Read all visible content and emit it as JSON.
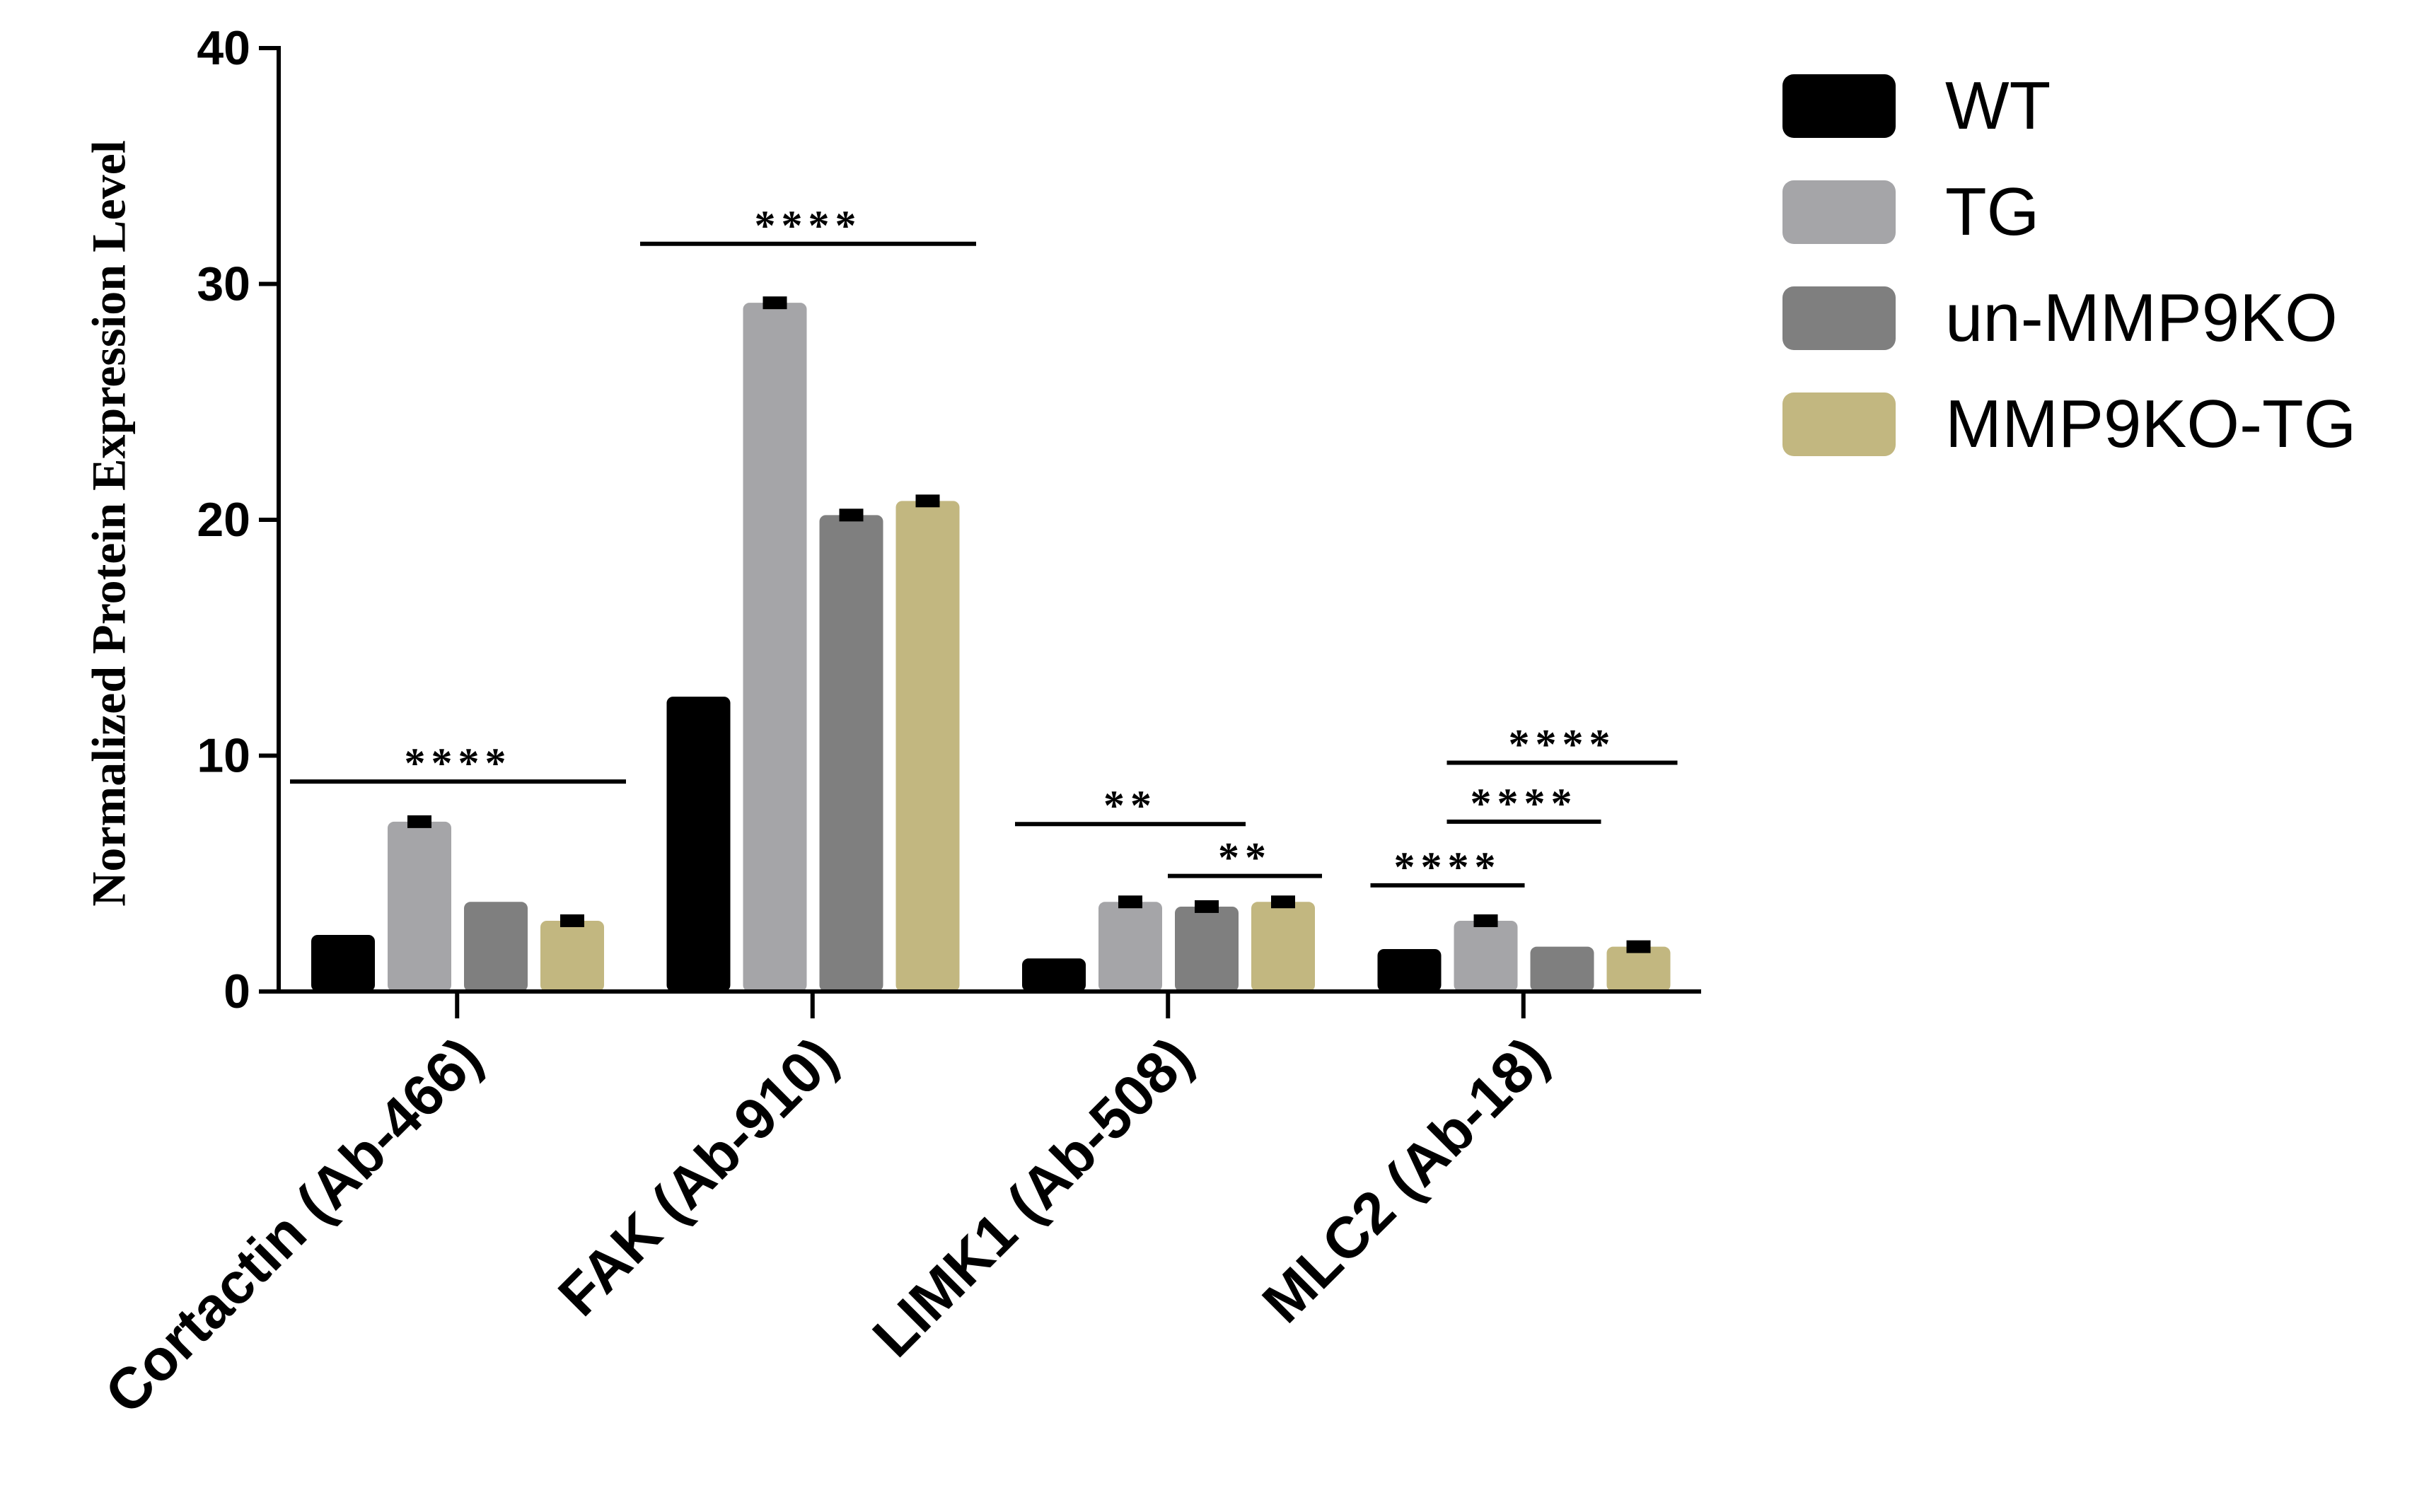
{
  "chart_data": {
    "type": "bar",
    "title": "",
    "xlabel": "",
    "ylabel": "Normalized Protein Expression Level",
    "ylim": [
      0,
      40
    ],
    "yticks": [
      "0",
      "10",
      "20",
      "30",
      "40"
    ],
    "grid": false,
    "legend_position": "top-right",
    "categories": [
      "Cortactin (Ab-466)",
      "FAK (Ab-910)",
      "LIMK1 (Ab-508)",
      "MLC2 (Ab-18)"
    ],
    "series": [
      {
        "name": "WT",
        "color": "#000000",
        "values": [
          2.4,
          12.5,
          1.4,
          1.8
        ],
        "errors": [
          0,
          0,
          0,
          0
        ]
      },
      {
        "name": "TG",
        "color": "#a5a5a8",
        "values": [
          7.2,
          29.2,
          3.8,
          3.0
        ],
        "errors": [
          0.2,
          0.2,
          0.2,
          0.2
        ]
      },
      {
        "name": "un-MMP9KO",
        "color": "#7f7f7f",
        "values": [
          3.8,
          20.2,
          3.6,
          1.9
        ],
        "errors": [
          0,
          0.2,
          0.2,
          0
        ]
      },
      {
        "name": "MMP9KO-TG",
        "color": "#c2b780",
        "values": [
          3.0,
          20.8,
          3.8,
          1.9
        ],
        "errors": [
          0.2,
          0.2,
          0.2,
          0.2
        ]
      }
    ],
    "annotations": [
      {
        "category": 0,
        "from_series": 0,
        "to_series": 3,
        "y": 8.9,
        "text": "****"
      },
      {
        "category": 1,
        "from_series": 0,
        "to_series": 3,
        "y": 31.7,
        "text": "****"
      },
      {
        "category": 2,
        "from_series": 0,
        "to_series": 2,
        "y": 7.1,
        "text": "**"
      },
      {
        "category": 2,
        "from_series": 2,
        "to_series": 3,
        "y": 4.9,
        "text": "**"
      },
      {
        "category": 3,
        "from_series": 0,
        "to_series": 1,
        "y": 4.5,
        "text": "****"
      },
      {
        "category": 3,
        "from_series": 1,
        "to_series": 2,
        "y": 7.2,
        "text": "****"
      },
      {
        "category": 3,
        "from_series": 1,
        "to_series": 3,
        "y": 9.7,
        "text": "****"
      }
    ]
  }
}
